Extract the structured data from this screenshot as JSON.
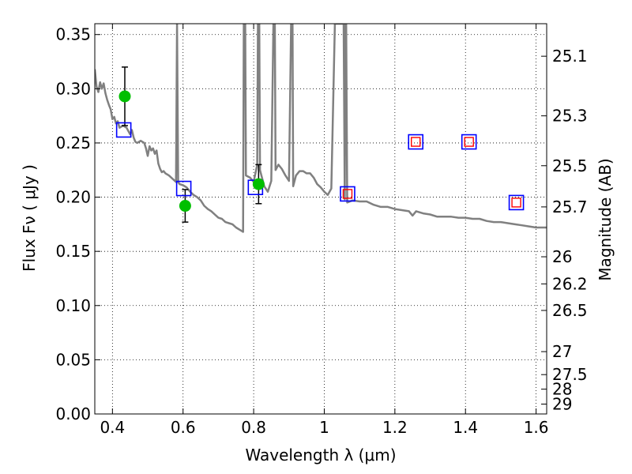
{
  "chart_data": {
    "type": "scatter",
    "xlabel": "Wavelength  λ (μm)",
    "ylabel": "Flux  Fν  ( μJy )",
    "y2label": "Magnitude (AB)",
    "xlim": [
      0.35,
      1.63
    ],
    "ylim": [
      0.0,
      0.36
    ],
    "grid": true,
    "x_ticks": [
      {
        "value": 0.4,
        "label": "0.4"
      },
      {
        "value": 0.6,
        "label": "0.6"
      },
      {
        "value": 0.8,
        "label": "0.8"
      },
      {
        "value": 1.0,
        "label": "1"
      },
      {
        "value": 1.2,
        "label": "1.2"
      },
      {
        "value": 1.4,
        "label": "1.4"
      },
      {
        "value": 1.6,
        "label": "1.6"
      }
    ],
    "y_ticks": [
      {
        "value": 0.0,
        "label": "0.00"
      },
      {
        "value": 0.05,
        "label": "0.05"
      },
      {
        "value": 0.1,
        "label": "0.10"
      },
      {
        "value": 0.15,
        "label": "0.15"
      },
      {
        "value": 0.2,
        "label": "0.20"
      },
      {
        "value": 0.25,
        "label": "0.25"
      },
      {
        "value": 0.3,
        "label": "0.30"
      },
      {
        "value": 0.35,
        "label": "0.35"
      }
    ],
    "y2_ticks": [
      {
        "flux": 0.33,
        "label": "25.1"
      },
      {
        "flux": 0.275,
        "label": "25.3"
      },
      {
        "flux": 0.229,
        "label": "25.5"
      },
      {
        "flux": 0.191,
        "label": "25.7"
      },
      {
        "flux": 0.145,
        "label": "26"
      },
      {
        "flux": 0.12,
        "label": "26.2"
      },
      {
        "flux": 0.0955,
        "label": "26.5"
      },
      {
        "flux": 0.0575,
        "label": "27"
      },
      {
        "flux": 0.0363,
        "label": "27.5"
      },
      {
        "flux": 0.0229,
        "label": "28"
      },
      {
        "flux": 0.0091,
        "label": "29"
      }
    ],
    "series": [
      {
        "kind": "model-sed",
        "color": "#808080",
        "points": [
          [
            0.35,
            0.318
          ],
          [
            0.355,
            0.302
          ],
          [
            0.36,
            0.297
          ],
          [
            0.365,
            0.306
          ],
          [
            0.37,
            0.3
          ],
          [
            0.375,
            0.305
          ],
          [
            0.38,
            0.296
          ],
          [
            0.385,
            0.29
          ],
          [
            0.39,
            0.285
          ],
          [
            0.395,
            0.281
          ],
          [
            0.4,
            0.272
          ],
          [
            0.405,
            0.274
          ],
          [
            0.41,
            0.268
          ],
          [
            0.415,
            0.27
          ],
          [
            0.42,
            0.264
          ],
          [
            0.43,
            0.266
          ],
          [
            0.44,
            0.264
          ],
          [
            0.45,
            0.258
          ],
          [
            0.455,
            0.262
          ],
          [
            0.46,
            0.255
          ],
          [
            0.465,
            0.251
          ],
          [
            0.47,
            0.25
          ],
          [
            0.48,
            0.252
          ],
          [
            0.49,
            0.25
          ],
          [
            0.495,
            0.245
          ],
          [
            0.5,
            0.238
          ],
          [
            0.505,
            0.247
          ],
          [
            0.51,
            0.243
          ],
          [
            0.515,
            0.245
          ],
          [
            0.52,
            0.24
          ],
          [
            0.525,
            0.243
          ],
          [
            0.53,
            0.231
          ],
          [
            0.535,
            0.226
          ],
          [
            0.54,
            0.223
          ],
          [
            0.545,
            0.224
          ],
          [
            0.55,
            0.222
          ],
          [
            0.56,
            0.22
          ],
          [
            0.57,
            0.217
          ],
          [
            0.58,
            0.214
          ],
          [
            0.583,
            0.36
          ],
          [
            0.586,
            0.214
          ],
          [
            0.59,
            0.212
          ],
          [
            0.6,
            0.211
          ],
          [
            0.61,
            0.209
          ],
          [
            0.62,
            0.205
          ],
          [
            0.63,
            0.202
          ],
          [
            0.64,
            0.2
          ],
          [
            0.65,
            0.197
          ],
          [
            0.66,
            0.192
          ],
          [
            0.67,
            0.189
          ],
          [
            0.68,
            0.187
          ],
          [
            0.69,
            0.184
          ],
          [
            0.7,
            0.181
          ],
          [
            0.71,
            0.18
          ],
          [
            0.72,
            0.177
          ],
          [
            0.73,
            0.176
          ],
          [
            0.74,
            0.175
          ],
          [
            0.75,
            0.172
          ],
          [
            0.76,
            0.17
          ],
          [
            0.77,
            0.168
          ],
          [
            0.772,
            0.36
          ],
          [
            0.776,
            0.36
          ],
          [
            0.778,
            0.22
          ],
          [
            0.79,
            0.218
          ],
          [
            0.8,
            0.214
          ],
          [
            0.81,
            0.23
          ],
          [
            0.812,
            0.36
          ],
          [
            0.816,
            0.36
          ],
          [
            0.818,
            0.225
          ],
          [
            0.83,
            0.21
          ],
          [
            0.84,
            0.205
          ],
          [
            0.85,
            0.215
          ],
          [
            0.856,
            0.36
          ],
          [
            0.86,
            0.36
          ],
          [
            0.862,
            0.225
          ],
          [
            0.87,
            0.23
          ],
          [
            0.88,
            0.226
          ],
          [
            0.89,
            0.22
          ],
          [
            0.9,
            0.215
          ],
          [
            0.906,
            0.36
          ],
          [
            0.91,
            0.36
          ],
          [
            0.912,
            0.21
          ],
          [
            0.92,
            0.22
          ],
          [
            0.93,
            0.224
          ],
          [
            0.94,
            0.224
          ],
          [
            0.95,
            0.222
          ],
          [
            0.96,
            0.222
          ],
          [
            0.97,
            0.218
          ],
          [
            0.98,
            0.212
          ],
          [
            0.99,
            0.209
          ],
          [
            1.0,
            0.205
          ],
          [
            1.01,
            0.202
          ],
          [
            1.02,
            0.208
          ],
          [
            1.03,
            0.36
          ],
          [
            1.035,
            0.36
          ],
          [
            1.04,
            0.36
          ],
          [
            1.045,
            0.36
          ],
          [
            1.05,
            0.36
          ],
          [
            1.055,
            0.36
          ],
          [
            1.058,
            0.198
          ],
          [
            1.06,
            0.36
          ],
          [
            1.062,
            0.36
          ],
          [
            1.065,
            0.195
          ],
          [
            1.08,
            0.197
          ],
          [
            1.1,
            0.196
          ],
          [
            1.12,
            0.196
          ],
          [
            1.14,
            0.193
          ],
          [
            1.16,
            0.191
          ],
          [
            1.18,
            0.191
          ],
          [
            1.2,
            0.189
          ],
          [
            1.22,
            0.188
          ],
          [
            1.24,
            0.187
          ],
          [
            1.25,
            0.183
          ],
          [
            1.26,
            0.187
          ],
          [
            1.28,
            0.185
          ],
          [
            1.3,
            0.184
          ],
          [
            1.32,
            0.182
          ],
          [
            1.34,
            0.182
          ],
          [
            1.36,
            0.182
          ],
          [
            1.38,
            0.181
          ],
          [
            1.4,
            0.181
          ],
          [
            1.42,
            0.18
          ],
          [
            1.44,
            0.18
          ],
          [
            1.46,
            0.178
          ],
          [
            1.48,
            0.177
          ],
          [
            1.5,
            0.177
          ],
          [
            1.52,
            0.176
          ],
          [
            1.54,
            0.175
          ],
          [
            1.56,
            0.174
          ],
          [
            1.58,
            0.173
          ],
          [
            1.6,
            0.172
          ],
          [
            1.63,
            0.172
          ]
        ]
      },
      {
        "kind": "observed",
        "marker": "circle",
        "color": "#00bf00",
        "points": [
          {
            "x": 0.435,
            "y": 0.293,
            "err": 0.027
          },
          {
            "x": 0.606,
            "y": 0.192,
            "err": 0.015
          },
          {
            "x": 0.814,
            "y": 0.212,
            "err": 0.018
          }
        ]
      },
      {
        "kind": "model-band",
        "marker": "square-open",
        "color": "#0000ff",
        "points": [
          {
            "x": 0.432,
            "y": 0.262
          },
          {
            "x": 0.602,
            "y": 0.208
          },
          {
            "x": 0.805,
            "y": 0.209
          },
          {
            "x": 1.066,
            "y": 0.203
          },
          {
            "x": 1.259,
            "y": 0.251
          },
          {
            "x": 1.41,
            "y": 0.251
          },
          {
            "x": 1.544,
            "y": 0.195
          }
        ]
      },
      {
        "kind": "model-band-inner",
        "marker": "square-open-small",
        "color": "#ff0000",
        "points": [
          {
            "x": 1.066,
            "y": 0.203
          },
          {
            "x": 1.259,
            "y": 0.251
          },
          {
            "x": 1.41,
            "y": 0.251
          },
          {
            "x": 1.544,
            "y": 0.195
          }
        ]
      }
    ]
  }
}
